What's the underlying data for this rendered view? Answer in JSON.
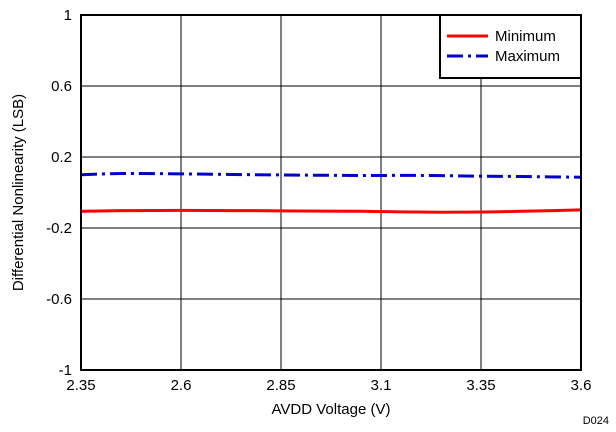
{
  "chart_data": {
    "type": "line",
    "title": "",
    "xlabel": "AVDD Voltage (V)",
    "ylabel": "Differential Nonlinearity (LSB)",
    "xlim": [
      2.35,
      3.6
    ],
    "ylim": [
      -1,
      1
    ],
    "x_ticks": [
      "2.35",
      "2.6",
      "2.85",
      "3.1",
      "3.35",
      "3.6"
    ],
    "y_ticks": [
      "-1",
      "-0.6",
      "-0.2",
      "0.2",
      "0.6",
      "1"
    ],
    "grid": true,
    "legend_position": "top-right",
    "figure_id": "D024",
    "series": [
      {
        "name": "Minimum",
        "color": "#ff0000",
        "dash": "solid",
        "x": [
          2.35,
          2.45,
          2.6,
          2.75,
          2.9,
          3.05,
          3.15,
          3.25,
          3.35,
          3.45,
          3.6
        ],
        "y": [
          -0.106,
          -0.102,
          -0.101,
          -0.102,
          -0.104,
          -0.106,
          -0.109,
          -0.111,
          -0.11,
          -0.106,
          -0.098
        ]
      },
      {
        "name": "Maximum",
        "color": "#0000cc",
        "dash": "dash-dot",
        "x": [
          2.35,
          2.45,
          2.6,
          2.75,
          2.9,
          3.05,
          3.2,
          3.35,
          3.45,
          3.6
        ],
        "y": [
          0.1,
          0.107,
          0.105,
          0.101,
          0.098,
          0.096,
          0.096,
          0.092,
          0.09,
          0.086
        ]
      }
    ]
  }
}
